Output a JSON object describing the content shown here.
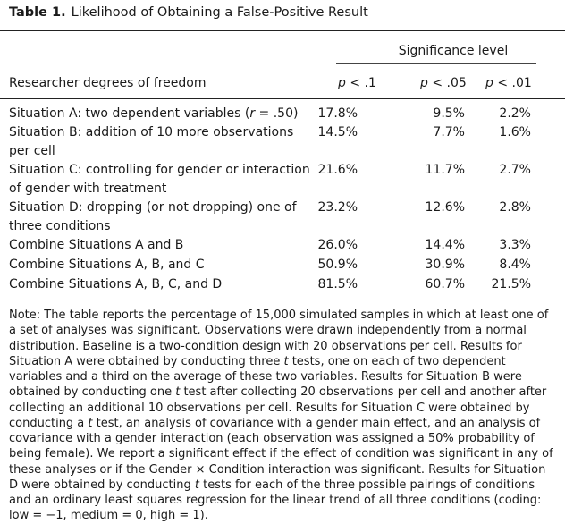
{
  "table": {
    "number": "Table 1.",
    "title": "Likelihood of Obtaining a False-Positive Result",
    "significance_header": "Significance level",
    "row_header": "Researcher degrees of freedom",
    "columns": [
      {
        "p": "p",
        "op": " < .1"
      },
      {
        "p": "p",
        "op": " < .05"
      },
      {
        "p": "p",
        "op": " < .01"
      }
    ],
    "rows": [
      {
        "pre": "Situation A: two dependent variables (",
        "var": "r",
        "post": " = .50)",
        "values": [
          "17.8%",
          "9.5%",
          "2.2%"
        ]
      },
      {
        "pre": "Situation B: addition of 10 more observations per cell",
        "var": "",
        "post": "",
        "values": [
          "14.5%",
          "7.7%",
          "1.6%"
        ]
      },
      {
        "pre": "Situation C: controlling for gender or interaction of gender with treatment",
        "var": "",
        "post": "",
        "values": [
          "21.6%",
          "11.7%",
          "2.7%"
        ]
      },
      {
        "pre": "Situation D: dropping (or not dropping) one of three conditions",
        "var": "",
        "post": "",
        "values": [
          "23.2%",
          "12.6%",
          "2.8%"
        ]
      },
      {
        "pre": "Combine Situations A and B",
        "var": "",
        "post": "",
        "values": [
          "26.0%",
          "14.4%",
          "3.3%"
        ]
      },
      {
        "pre": "Combine Situations A, B, and C",
        "var": "",
        "post": "",
        "values": [
          "50.9%",
          "30.9%",
          "8.4%"
        ]
      },
      {
        "pre": "Combine Situations A, B, C, and D",
        "var": "",
        "post": "",
        "values": [
          "81.5%",
          "60.7%",
          "21.5%"
        ]
      }
    ]
  },
  "note": {
    "s1": "Note: The table reports the percentage of 15,000 simulated samples in which at least one of a set of analyses was significant. Observations were drawn independently from a normal distribution. Baseline is a two-condition design with 20 observations per cell. Results for Situation A were obtained by conducting three ",
    "t1": "t",
    "s2": " tests, one on each of two dependent variables and a third on the average of these two variables. Results for Situation B were obtained by conducting one ",
    "t2": "t",
    "s3": " test after collecting 20 observations per cell and another after collecting an additional 10 observations per cell. Results for Situation C were obtained by conducting a ",
    "t3": "t",
    "s4": " test, an analysis of covariance with a gender main effect, and an analysis of covariance with a gender interaction (each observation was assigned a 50% probability of being female). We report a significant effect if the effect of condition was significant in any of these analyses or if the Gender × Condition interaction was significant. Results for Situation D were obtained by conducting ",
    "t4": "t",
    "s5": " tests for each of the three possible pairings of conditions and an ordinary least squares regression for the linear trend of all three conditions (coding: low = −1, medium = 0, high = 1)."
  }
}
